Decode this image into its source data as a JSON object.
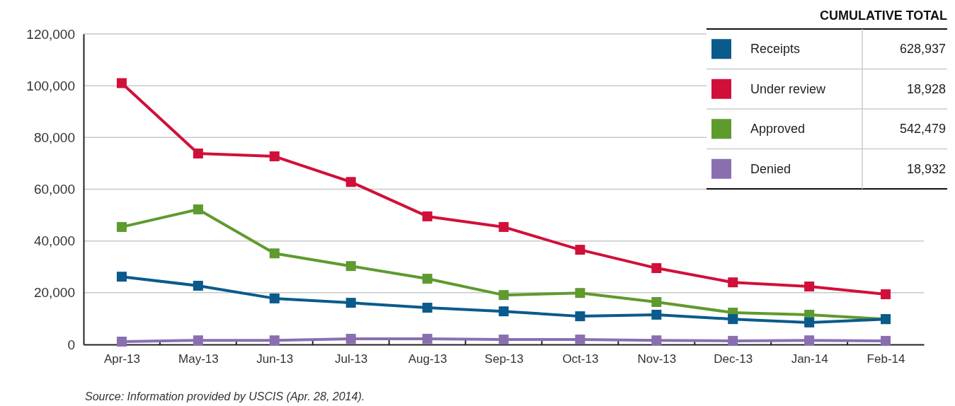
{
  "chart_data": {
    "type": "line",
    "categories": [
      "Apr-13",
      "May-13",
      "Jun-13",
      "Jul-13",
      "Aug-13",
      "Sep-13",
      "Oct-13",
      "Nov-13",
      "Dec-13",
      "Jan-14",
      "Feb-14"
    ],
    "series": [
      {
        "name": "Receipts",
        "color": "#0a5a8c",
        "values": [
          26200,
          22700,
          17800,
          16100,
          14200,
          12800,
          10900,
          11500,
          9800,
          8500,
          9800
        ]
      },
      {
        "name": "Under review",
        "color": "#d0103a",
        "values": [
          101000,
          73800,
          72700,
          62800,
          49500,
          45400,
          36600,
          29500,
          24000,
          22400,
          19400
        ]
      },
      {
        "name": "Approved",
        "color": "#5f9a2e",
        "values": [
          45400,
          52200,
          35200,
          30300,
          25400,
          19100,
          19900,
          16400,
          12300,
          11500,
          9800
        ]
      },
      {
        "name": "Denied",
        "color": "#8a6fb0",
        "values": [
          1100,
          1600,
          1600,
          2200,
          2200,
          1900,
          1900,
          1600,
          1400,
          1600,
          1400
        ]
      }
    ],
    "ylim": [
      0,
      120000
    ],
    "yticks": [
      {
        "value": 0,
        "label": "0"
      },
      {
        "value": 20000,
        "label": "20,000"
      },
      {
        "value": 40000,
        "label": "40,000"
      },
      {
        "value": 60000,
        "label": "60,000"
      },
      {
        "value": 80000,
        "label": "80,000"
      },
      {
        "value": 100000,
        "label": "100,000"
      },
      {
        "value": 120000,
        "label": "120,000"
      }
    ],
    "grid": "y",
    "marker": "square",
    "line_style": "solid",
    "legend": "top right",
    "legend_title": "CUMULATIVE TOTAL",
    "annotations": [
      "628,937",
      "18,928",
      "542,479",
      "18,932",
      "Source:  Information provided by USCIS (Apr. 28, 2014)."
    ]
  }
}
